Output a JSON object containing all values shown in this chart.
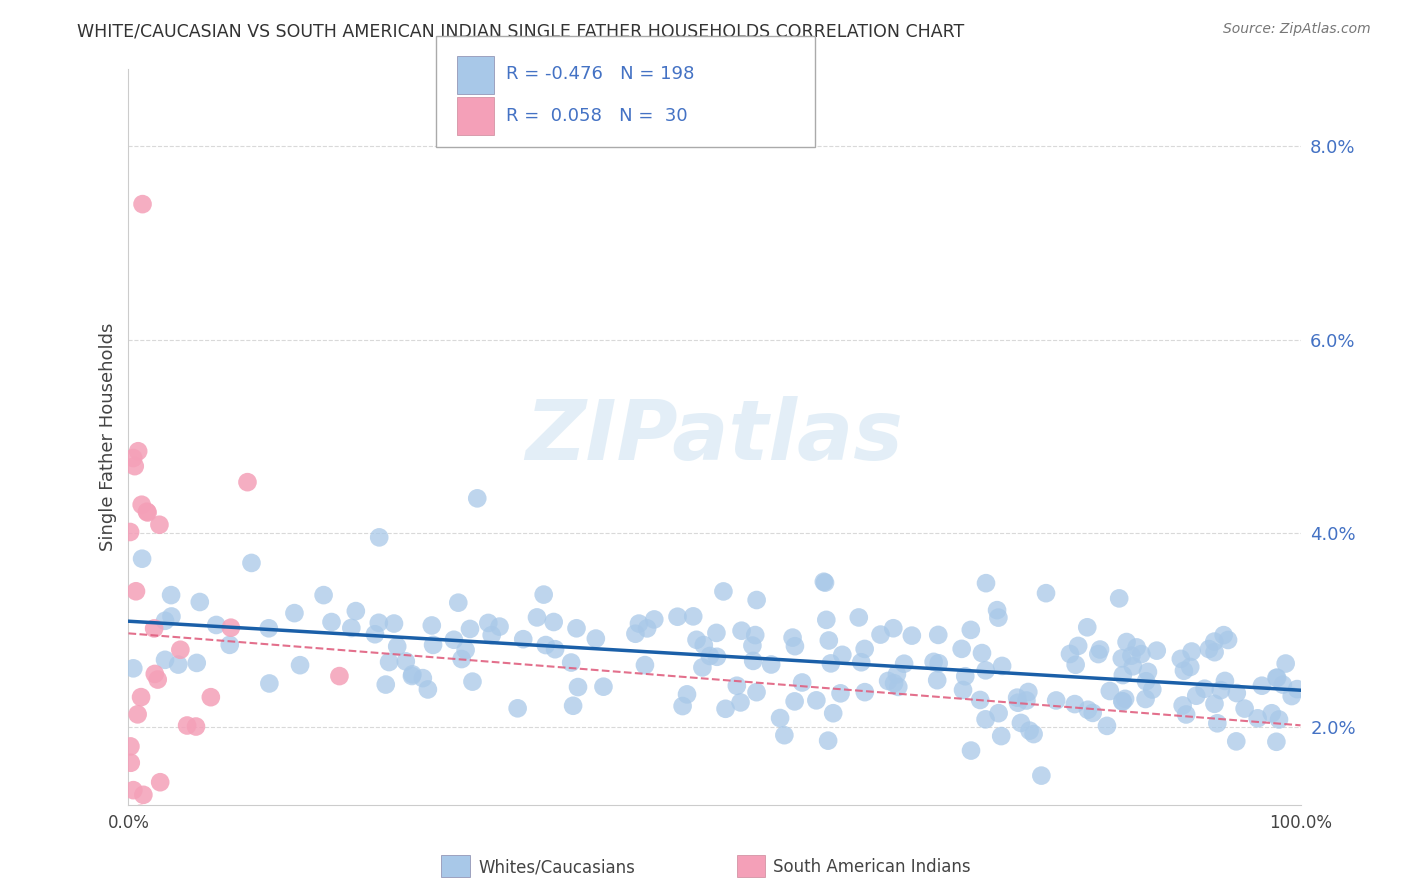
{
  "title": "WHITE/CAUCASIAN VS SOUTH AMERICAN INDIAN SINGLE FATHER HOUSEHOLDS CORRELATION CHART",
  "source": "Source: ZipAtlas.com",
  "xlabel_white": "Whites/Caucasians",
  "xlabel_south": "South American Indians",
  "ylabel": "Single Father Households",
  "watermark": "ZIPatlas",
  "legend_blue_R": "-0.476",
  "legend_blue_N": "198",
  "legend_pink_R": "0.058",
  "legend_pink_N": "30",
  "blue_color": "#a8c8e8",
  "pink_color": "#f4a0b8",
  "blue_line_color": "#1a5fa8",
  "pink_line_color": "#e06080",
  "xmin": 0.0,
  "xmax": 100.0,
  "ymin": 1.2,
  "ymax": 8.8,
  "yticks": [
    2.0,
    4.0,
    6.0,
    8.0
  ],
  "background_color": "#ffffff",
  "grid_color": "#d0d0d0"
}
